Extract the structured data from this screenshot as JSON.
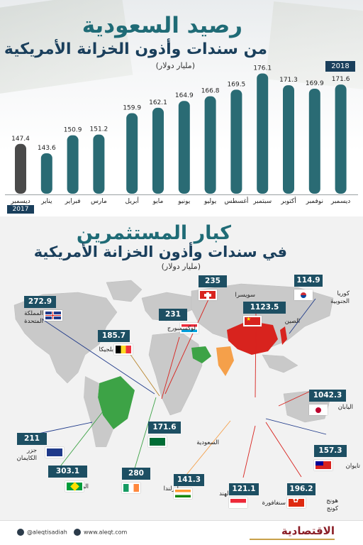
{
  "top": {
    "title": "رصيد السعودية",
    "subtitle": "من سندات وأذون الخزانة الأمريكية",
    "unit": "(مليار دولار)",
    "year_start": "2017",
    "year_end": "2018"
  },
  "chart_data": {
    "type": "bar",
    "title": "رصيد السعودية من سندات وأذون الخزانة الأمريكية",
    "ylabel": "(مليار دولار)",
    "categories": [
      "ديسمبر",
      "يناير",
      "فبراير",
      "مارس",
      "أبريل",
      "مايو",
      "يونيو",
      "يوليو",
      "أغسطس",
      "سبتمبر",
      "أكتوبر",
      "نوفمبر",
      "ديسمبر"
    ],
    "values": [
      147.4,
      143.6,
      150.9,
      151.2,
      159.9,
      162.1,
      164.9,
      166.8,
      169.5,
      176.1,
      171.3,
      169.9,
      171.6
    ],
    "value_labels": [
      "147.4",
      "143.6",
      "150.9",
      "151.2",
      "159.9",
      "162.1",
      "164.9",
      "166.8",
      "169.5",
      "176.1",
      "171.3",
      "169.9",
      "171.6"
    ],
    "colors": {
      "first": "#4a4a4a",
      "rest": "#2a6b74"
    }
  },
  "bottom": {
    "title": "كبار المستثمرين",
    "subtitle": "في سندات وأذون الخزانة الأمريكية",
    "unit": "(مليار دولار)"
  },
  "investors": [
    {
      "name": "كوريا الجنوبية",
      "value": "114.9",
      "flag": "flag-korea",
      "accent": "#1d4f63"
    },
    {
      "name": "سويسرا",
      "value": "235",
      "flag": "flag-switzerland",
      "accent": "#1d4f63"
    },
    {
      "name": "الصين",
      "value": "1123.5",
      "flag": "flag-china",
      "accent": "#1d4f63"
    },
    {
      "name": "المملكة المتحدة",
      "value": "272.9",
      "flag": "flag-uk",
      "accent": "#1d4f63"
    },
    {
      "name": "لوكسمبورج",
      "value": "231",
      "flag": "flag-luxembourg",
      "accent": "#1d4f63"
    },
    {
      "name": "بلجيكا",
      "value": "185.7",
      "flag": "flag-belgium",
      "accent": "#1d4f63"
    },
    {
      "name": "اليابان",
      "value": "1042.3",
      "flag": "flag-japan",
      "accent": "#1d4f63"
    },
    {
      "name": "السعودية",
      "value": "171.6",
      "flag": "flag-saudi",
      "accent": "#1d4f63"
    },
    {
      "name": "تايوان",
      "value": "157.3",
      "flag": "flag-taiwan",
      "accent": "#1d4f63"
    },
    {
      "name": "جزر الكايمان",
      "value": "211",
      "flag": "flag-cayman",
      "accent": "#1d4f63"
    },
    {
      "name": "إيرلندا",
      "value": "280",
      "flag": "flag-ireland",
      "accent": "#1d4f63"
    },
    {
      "name": "البرازيل",
      "value": "303.1",
      "flag": "flag-brazil",
      "accent": "#1d4f63"
    },
    {
      "name": "الهند",
      "value": "141.3",
      "flag": "flag-india",
      "accent": "#1d4f63"
    },
    {
      "name": "سنغافورة",
      "value": "121.1",
      "flag": "flag-singapore",
      "accent": "#1d4f63"
    },
    {
      "name": "هونج كونج",
      "value": "196.2",
      "flag": "flag-hongkong",
      "accent": "#1d4f63"
    }
  ],
  "footer": {
    "twitter": "@aleqtisadiah",
    "website": "www.aleqt.com",
    "logo": "الاقتصادية"
  }
}
